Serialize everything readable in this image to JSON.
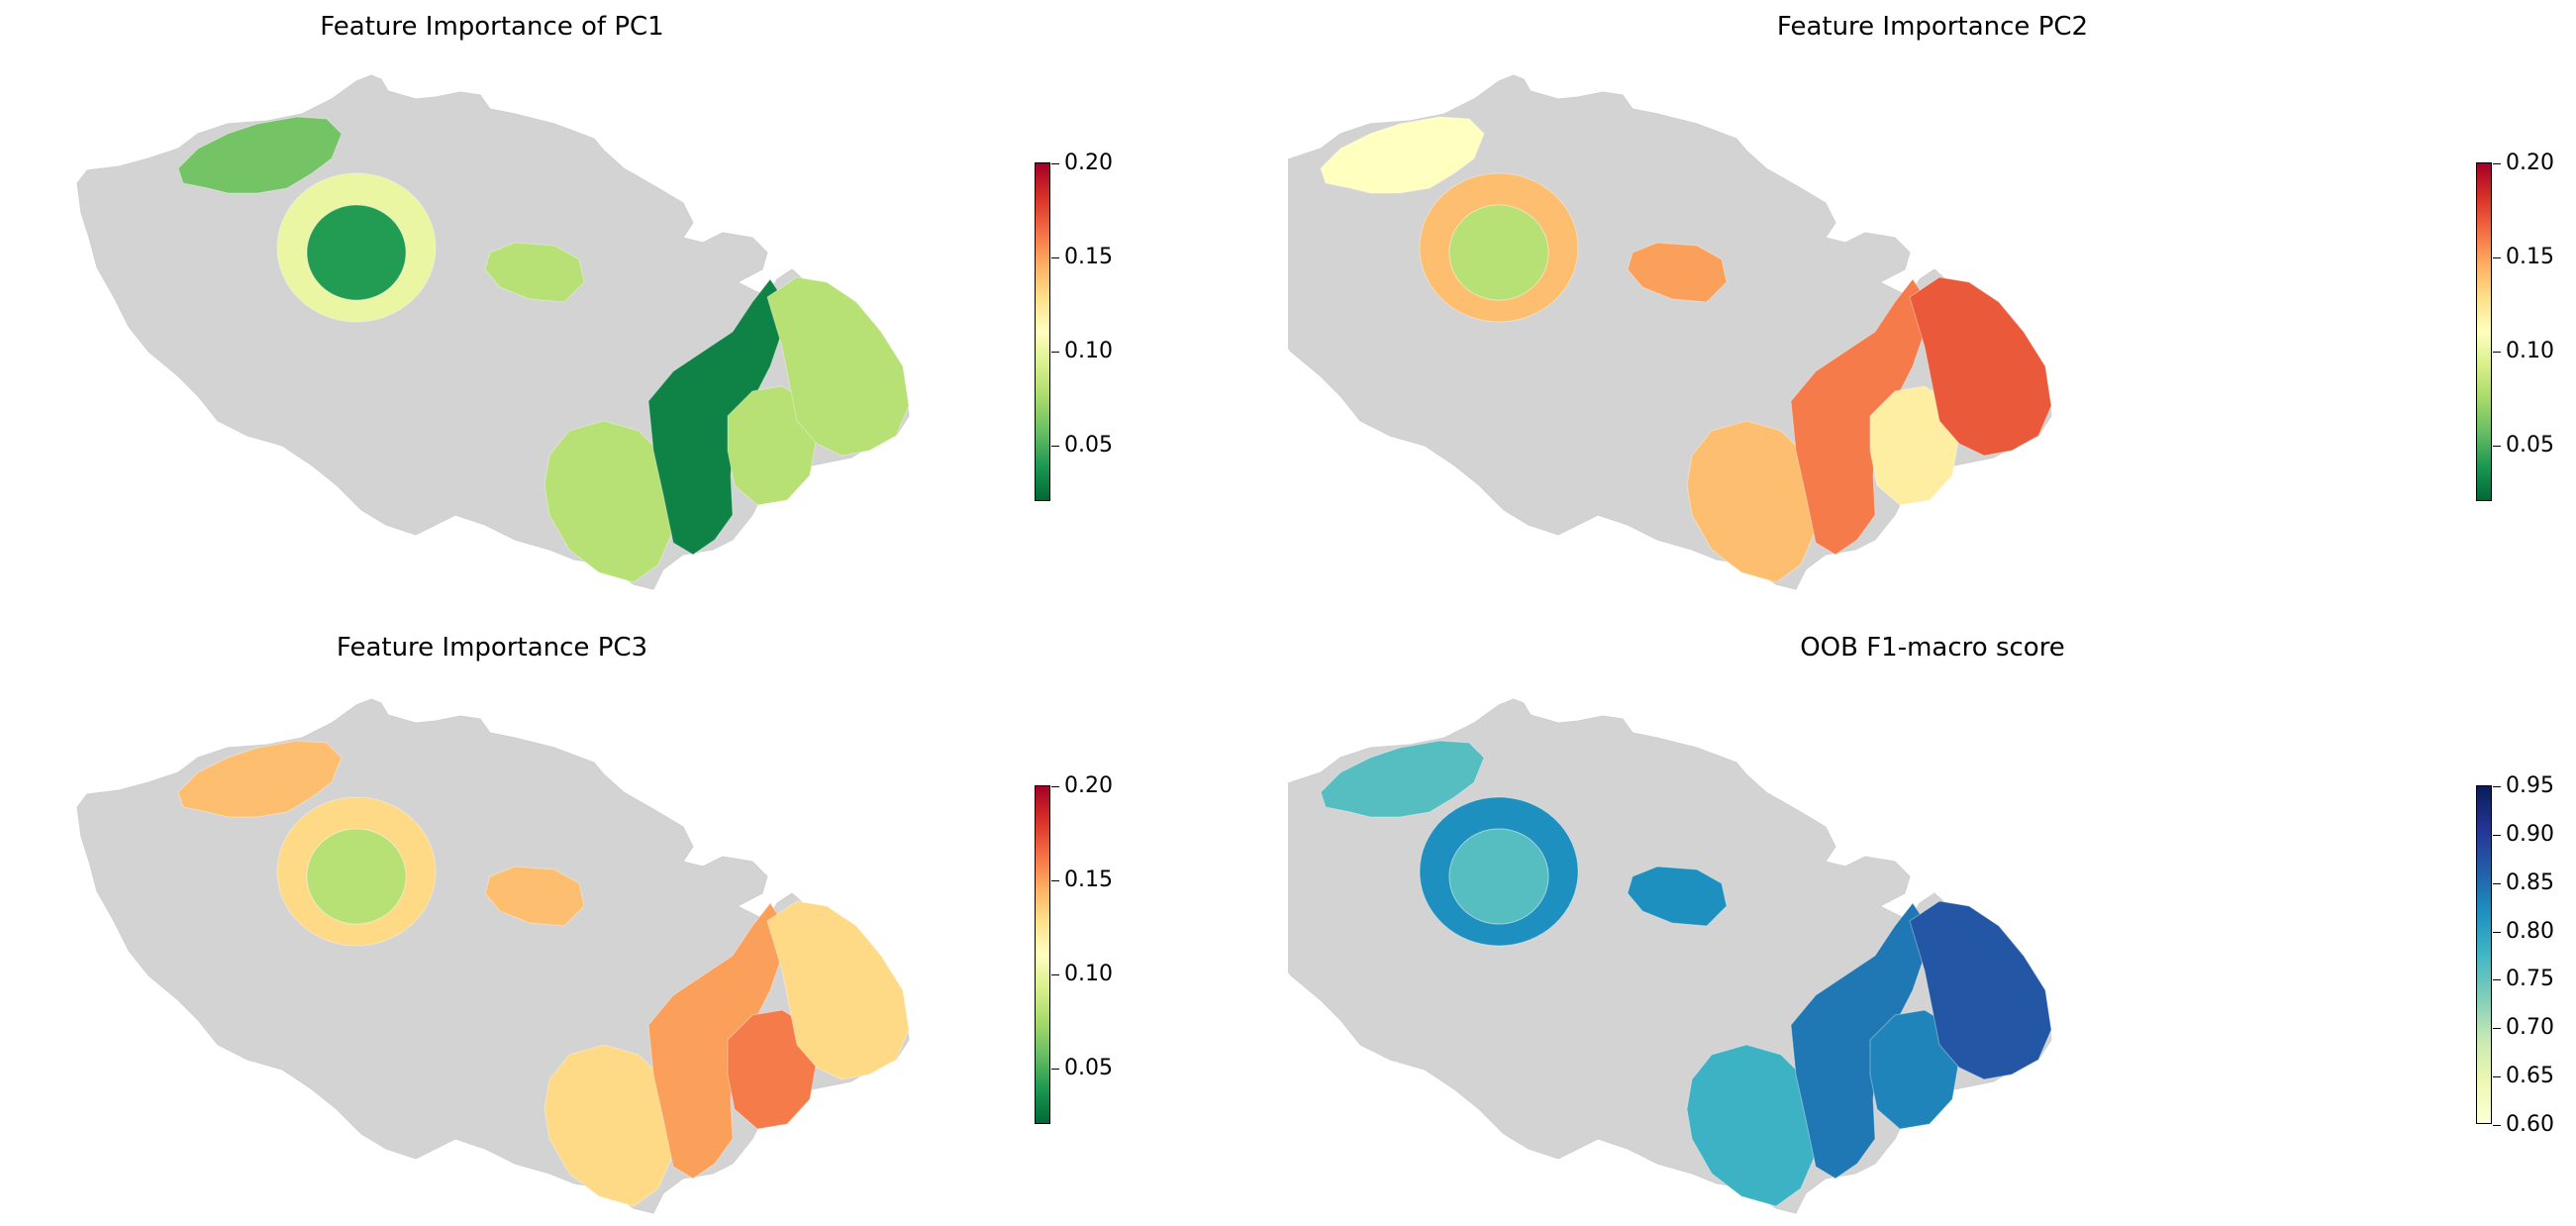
{
  "chart_data": [
    {
      "type": "map",
      "title": "Feature Importance of PC1",
      "colormap": "RdYlGn_r",
      "colorbar": {
        "min": 0.02,
        "max": 0.2,
        "ticks": [
          "0.05",
          "0.10",
          "0.15",
          "0.20"
        ]
      },
      "base_color": "#d3d3d3",
      "regions": [
        {
          "name": "north-west",
          "value": 0.06
        },
        {
          "name": "west-ring",
          "value": 0.1
        },
        {
          "name": "west-core",
          "value": 0.04
        },
        {
          "name": "central-blob",
          "value": 0.08
        },
        {
          "name": "south-east-west",
          "value": 0.08
        },
        {
          "name": "south-east-strip",
          "value": 0.03
        },
        {
          "name": "south-east-east",
          "value": 0.08
        },
        {
          "name": "east",
          "value": 0.08
        }
      ]
    },
    {
      "type": "map",
      "title": "Feature Importance PC2",
      "colormap": "RdYlGn_r",
      "colorbar": {
        "min": 0.02,
        "max": 0.2,
        "ticks": [
          "0.05",
          "0.10",
          "0.15",
          "0.20"
        ]
      },
      "base_color": "#d3d3d3",
      "regions": [
        {
          "name": "north-west",
          "value": 0.11
        },
        {
          "name": "west-ring",
          "value": 0.14
        },
        {
          "name": "west-core",
          "value": 0.08
        },
        {
          "name": "central-blob",
          "value": 0.15
        },
        {
          "name": "south-east-west",
          "value": 0.14
        },
        {
          "name": "south-east-strip",
          "value": 0.16
        },
        {
          "name": "south-east-east",
          "value": 0.12
        },
        {
          "name": "east",
          "value": 0.17
        }
      ]
    },
    {
      "type": "map",
      "title": "Feature Importance PC3",
      "colormap": "RdYlGn_r",
      "colorbar": {
        "min": 0.02,
        "max": 0.2,
        "ticks": [
          "0.05",
          "0.10",
          "0.15",
          "0.20"
        ]
      },
      "base_color": "#d3d3d3",
      "regions": [
        {
          "name": "north-west",
          "value": 0.14
        },
        {
          "name": "west-ring",
          "value": 0.13
        },
        {
          "name": "west-core",
          "value": 0.08
        },
        {
          "name": "central-blob",
          "value": 0.14
        },
        {
          "name": "south-east-west",
          "value": 0.13
        },
        {
          "name": "south-east-strip",
          "value": 0.15
        },
        {
          "name": "south-east-east",
          "value": 0.16
        },
        {
          "name": "east",
          "value": 0.13
        }
      ]
    },
    {
      "type": "map",
      "title": "OOB F1-macro score",
      "colormap": "YlGnBu",
      "colorbar": {
        "min": 0.6,
        "max": 0.95,
        "ticks": [
          "0.60",
          "0.65",
          "0.70",
          "0.75",
          "0.80",
          "0.85",
          "0.90",
          "0.95"
        ]
      },
      "base_color": "#d3d3d3",
      "regions": [
        {
          "name": "north-west",
          "value": 0.76
        },
        {
          "name": "west-ring",
          "value": 0.82
        },
        {
          "name": "west-core",
          "value": 0.76
        },
        {
          "name": "central-blob",
          "value": 0.82
        },
        {
          "name": "south-east-west",
          "value": 0.78
        },
        {
          "name": "south-east-strip",
          "value": 0.84
        },
        {
          "name": "south-east-east",
          "value": 0.83
        },
        {
          "name": "east",
          "value": 0.87
        }
      ]
    }
  ]
}
